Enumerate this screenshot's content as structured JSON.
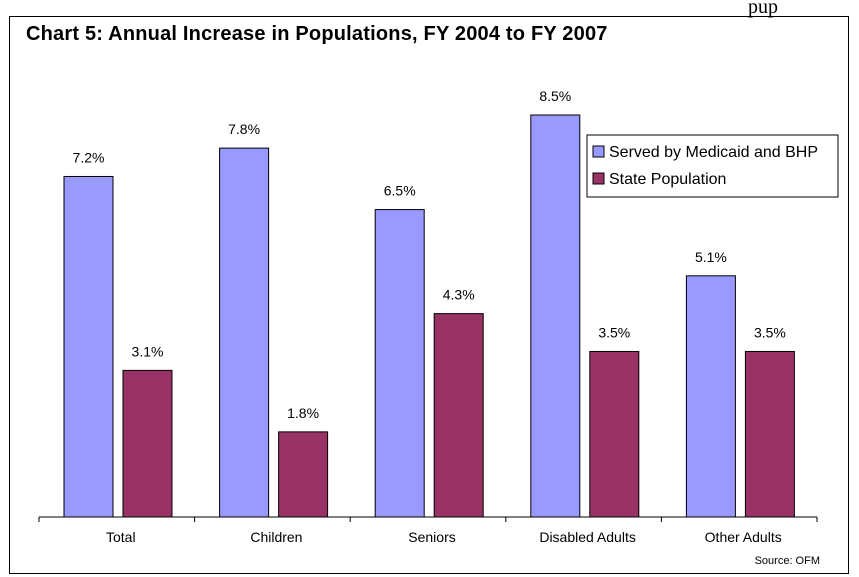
{
  "page": {
    "top_fragment": "pup"
  },
  "chart_data": {
    "type": "bar",
    "title": "Chart 5: Annual Increase in Populations, FY 2004 to FY 2007",
    "categories": [
      "Total",
      "Children",
      "Seniors",
      "Disabled Adults",
      "Other Adults"
    ],
    "series": [
      {
        "name": "Served by Medicaid and BHP",
        "values": [
          7.2,
          7.8,
          6.5,
          8.5,
          5.1
        ],
        "labels": [
          "7.2%",
          "7.8%",
          "6.5%",
          "8.5%",
          "5.1%"
        ],
        "color": "#9999ff"
      },
      {
        "name": "State Population",
        "values": [
          3.1,
          1.8,
          4.3,
          3.5,
          3.5
        ],
        "labels": [
          "3.1%",
          "1.8%",
          "4.3%",
          "3.5%",
          "3.5%"
        ],
        "color": "#993366"
      }
    ],
    "ylim": [
      0,
      8.5
    ],
    "y_axis_visible": false,
    "grid": false,
    "legend": "top-right",
    "source": "Source: OFM"
  }
}
